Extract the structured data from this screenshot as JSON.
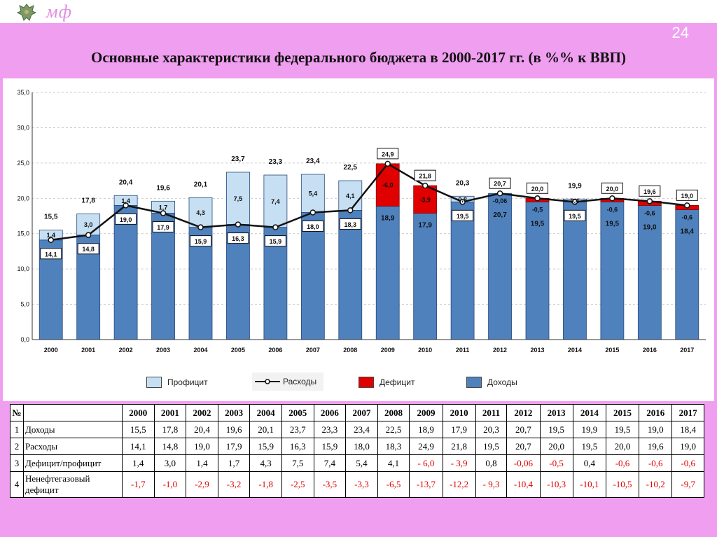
{
  "header": {
    "logo": "мф",
    "slide_number": "24"
  },
  "title": "Основные характеристики федерального бюджета в 2000-2017 гг. (в %% к ВВП)",
  "chart_data": {
    "type": "bar",
    "stacked": true,
    "ylim": [
      0,
      35
    ],
    "yticks": [
      "0,0",
      "5,0",
      "10,0",
      "15,0",
      "20,0",
      "25,0",
      "30,0",
      "35,0"
    ],
    "categories": [
      "2000",
      "2001",
      "2002",
      "2003",
      "2004",
      "2005",
      "2006",
      "2007",
      "2008",
      "2009",
      "2010",
      "2011",
      "2012",
      "2013",
      "2014",
      "2015",
      "2016",
      "2017"
    ],
    "revenue": [
      15.5,
      17.8,
      20.4,
      19.6,
      20.1,
      23.7,
      23.3,
      23.4,
      22.5,
      18.9,
      17.9,
      20.3,
      20.7,
      19.5,
      19.9,
      19.5,
      19.0,
      18.4
    ],
    "expenditure": [
      14.1,
      14.8,
      19.0,
      17.9,
      15.9,
      16.3,
      15.9,
      18.0,
      18.3,
      24.9,
      21.8,
      19.5,
      20.7,
      20.0,
      19.5,
      20.0,
      19.6,
      19.0
    ],
    "balance": [
      1.4,
      3.0,
      1.4,
      1.7,
      4.3,
      7.5,
      7.4,
      5.4,
      4.1,
      -6.0,
      -3.9,
      0.8,
      -0.06,
      -0.5,
      0.4,
      -0.6,
      -0.6,
      -0.6
    ],
    "revenue_labels": [
      "15,5",
      "17,8",
      "20,4",
      "19,6",
      "20,1",
      "23,7",
      "23,3",
      "23,4",
      "22,5",
      "18,9",
      "17,9",
      "20,3",
      "20,7",
      "19,5",
      "19,9",
      "19,5",
      "19,0",
      "18,4"
    ],
    "expenditure_labels": [
      "14,1",
      "14,8",
      "19,0",
      "17,9",
      "15,9",
      "16,3",
      "15,9",
      "18,0",
      "18,3",
      "24,9",
      "21,8",
      "19,5",
      "20,7",
      "20,0",
      "19,5",
      "20,0",
      "19,6",
      "19,0"
    ],
    "balance_labels": [
      "1,4",
      "3,0",
      "1,4",
      "1,7",
      "4,3",
      "7,5",
      "7,4",
      "5,4",
      "4,1",
      "-6,0",
      "-3,9",
      "0,8",
      "-0,06",
      "-0,5",
      "0,4",
      "-0,6",
      "-0,6",
      "-0,6"
    ],
    "legend": {
      "surplus": "Профицит",
      "expenditure": "Расходы",
      "deficit": "Дефицит",
      "revenue": "Доходы"
    },
    "colors": {
      "revenue": "#4f81bd",
      "surplus": "#c6dff2",
      "deficit": "#e00000",
      "line": "#111111"
    }
  },
  "table": {
    "header": [
      "№",
      "",
      "2000",
      "2001",
      "2002",
      "2003",
      "2004",
      "2005",
      "2006",
      "2007",
      "2008",
      "2009",
      "2010",
      "2011",
      "2012",
      "2013",
      "2014",
      "2015",
      "2016",
      "2017"
    ],
    "rows": [
      {
        "num": "1",
        "label": "Доходы",
        "values": [
          "15,5",
          "17,8",
          "20,4",
          "19,6",
          "20,1",
          "23,7",
          "23,3",
          "23,4",
          "22,5",
          "18,9",
          "17,9",
          "20,3",
          "20,7",
          "19,5",
          "19,9",
          "19,5",
          "19,0",
          "18,4"
        ]
      },
      {
        "num": "2",
        "label": "Расходы",
        "values": [
          "14,1",
          "14,8",
          "19,0",
          "17,9",
          "15,9",
          "16,3",
          "15,9",
          "18,0",
          "18,3",
          "24,9",
          "21,8",
          "19,5",
          "20,7",
          "20,0",
          "19,5",
          "20,0",
          "19,6",
          "19,0"
        ]
      },
      {
        "num": "3",
        "label": "Дефицит/профицит",
        "values": [
          "1,4",
          "3,0",
          "1,4",
          "1,7",
          "4,3",
          "7,5",
          "7,4",
          "5,4",
          "4,1",
          "- 6,0",
          "- 3,9",
          "0,8",
          "-0,06",
          "-0,5",
          "0,4",
          "-0,6",
          "-0,6",
          "-0,6"
        ]
      },
      {
        "num": "4",
        "label": "Ненефтегазовый дефицит",
        "values": [
          "-1,7",
          "-1,0",
          "-2,9",
          "-3,2",
          "-1,8",
          "-2,5",
          "-3,5",
          "-3,3",
          "-6,5",
          "-13,7",
          "-12,2",
          "- 9,3",
          "-10,4",
          "-10,3",
          "-10,1",
          "-10,5",
          "-10,2",
          "-9,7"
        ]
      }
    ]
  }
}
